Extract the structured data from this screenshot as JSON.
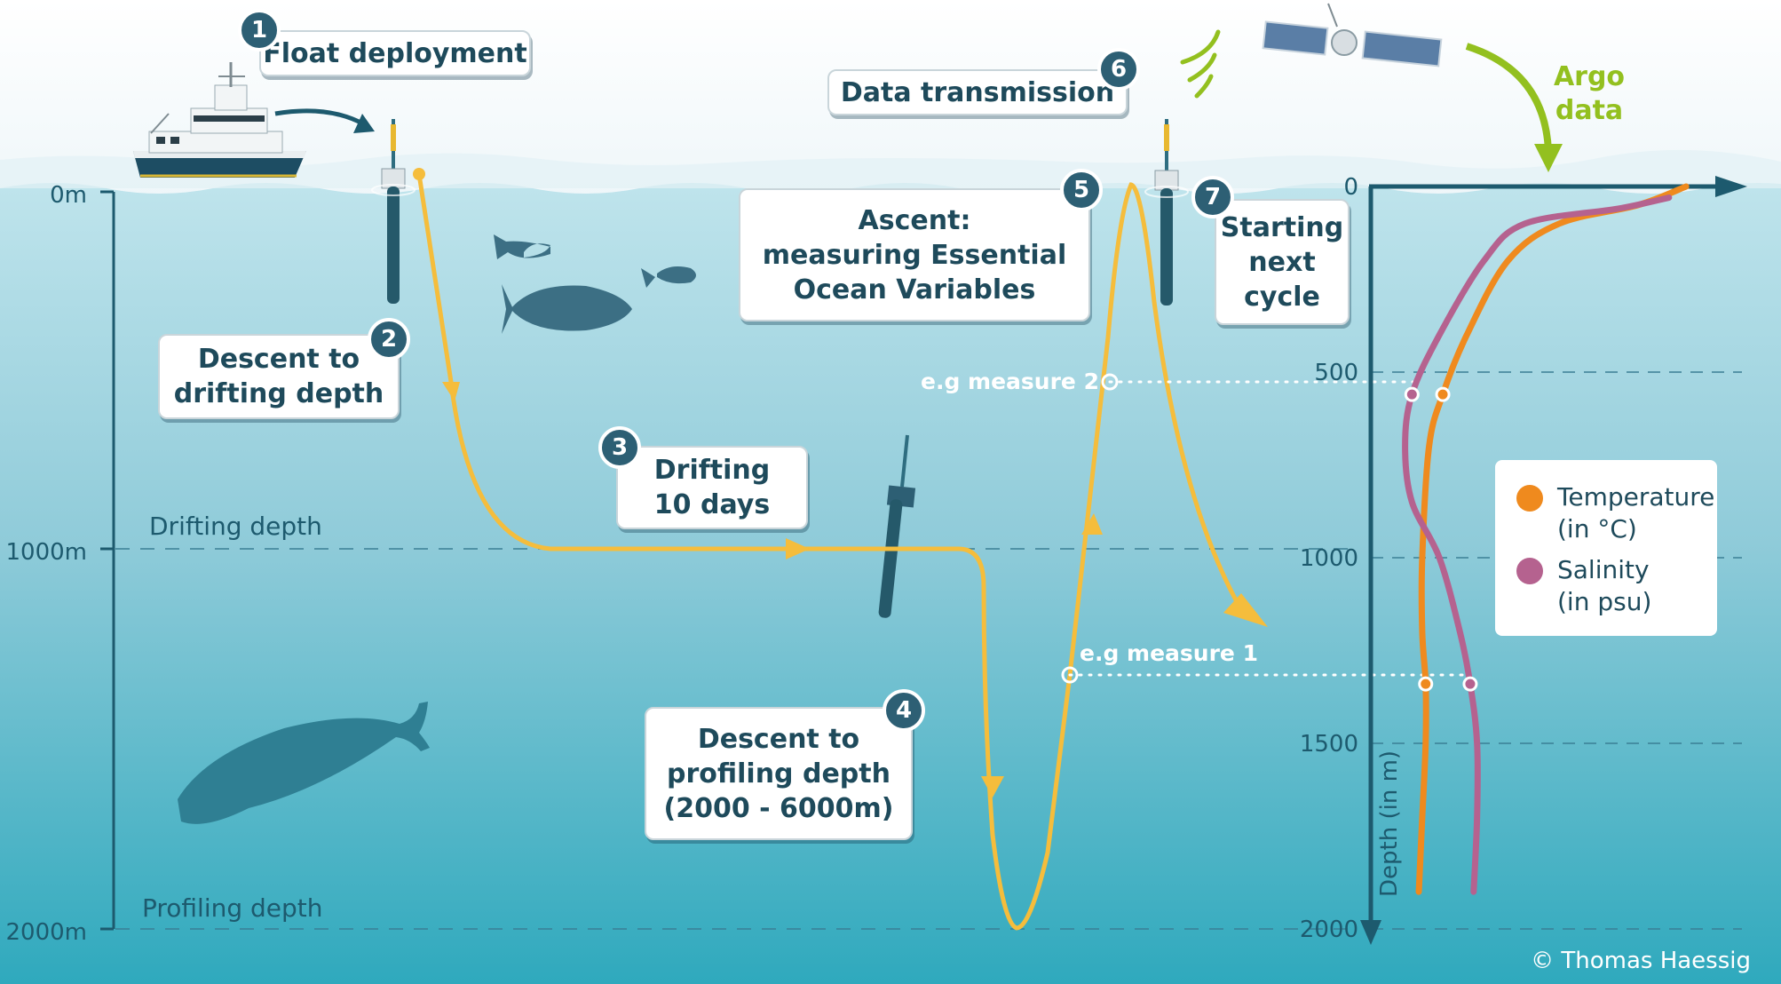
{
  "steps": [
    {
      "number": "1",
      "lines": [
        "Float deployment"
      ]
    },
    {
      "number": "2",
      "lines": [
        "Descent to",
        "drifting depth"
      ]
    },
    {
      "number": "3",
      "lines": [
        "Drifting",
        "10 days"
      ]
    },
    {
      "number": "4",
      "lines": [
        "Descent to",
        "profiling depth",
        "(2000 - 6000m)"
      ]
    },
    {
      "number": "5",
      "lines": [
        "Ascent:",
        "measuring Essential",
        "Ocean Variables"
      ]
    },
    {
      "number": "6",
      "lines": [
        "Data transmission"
      ]
    },
    {
      "number": "7",
      "lines": [
        "Starting",
        "next",
        "cycle"
      ]
    }
  ],
  "depth_scale": {
    "ticks": [
      "0m",
      "1000m",
      "2000m"
    ],
    "drifting_depth_label": "Drifting depth",
    "profiling_depth_label": "Profiling depth"
  },
  "measures": {
    "measure_1": "e.g measure 1",
    "measure_2": "e.g measure 2"
  },
  "argo_label": [
    "Argo",
    "data"
  ],
  "credit": "© Thomas Haessig",
  "colors": {
    "trajectory": "#f5bd3c",
    "temperature": "#ef8a1e",
    "salinity": "#b5628f",
    "axis": "#1d5a6e",
    "argo": "#93c01f",
    "badge": "#2d5f74",
    "box_text": "#1e4a5b"
  },
  "legend": {
    "temperature": [
      "Temperature",
      "(in °C)"
    ],
    "salinity": [
      "Salinity",
      "(in psu)"
    ]
  },
  "chart_data": {
    "type": "line",
    "ylabel": "Depth (in m)",
    "y_ticks": [
      "0",
      "500",
      "1000",
      "1500",
      "2000"
    ],
    "ylim": [
      0,
      2000
    ],
    "series": [
      {
        "name": "Temperature",
        "depth": [
          0,
          50,
          100,
          200,
          400,
          560,
          700,
          1000,
          1200,
          1340,
          1500,
          1700,
          1900
        ],
        "value": [
          0.92,
          0.78,
          0.55,
          0.4,
          0.28,
          0.21,
          0.17,
          0.15,
          0.15,
          0.16,
          0.16,
          0.15,
          0.14
        ]
      },
      {
        "name": "Salinity",
        "depth": [
          30,
          60,
          100,
          200,
          400,
          560,
          700,
          850,
          1000,
          1200,
          1340,
          1500,
          1700,
          1900
        ],
        "value": [
          0.87,
          0.72,
          0.45,
          0.33,
          0.2,
          0.12,
          0.1,
          0.12,
          0.2,
          0.26,
          0.29,
          0.31,
          0.31,
          0.3
        ]
      }
    ],
    "grid": "dashed horizontal"
  }
}
